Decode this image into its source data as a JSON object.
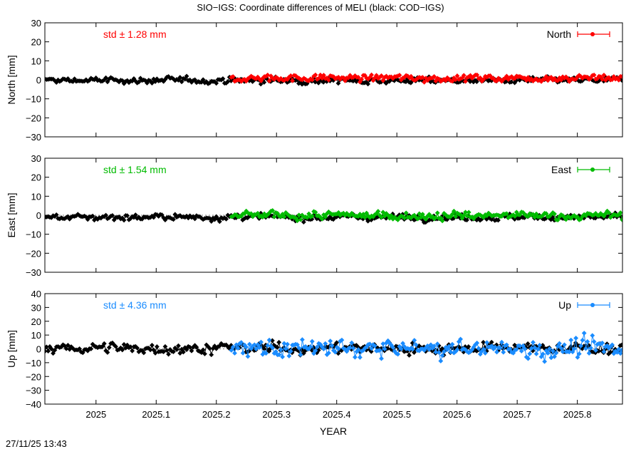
{
  "title": "SIO−IGS: Coordinate differences of MELI (black: COD−IGS)",
  "timestamp": "27/11/25 13:43",
  "chart_data": [
    {
      "type": "line",
      "ylabel": "North [mm]",
      "ylim": [
        -30,
        30
      ],
      "yticks": [
        30,
        20,
        10,
        0,
        -10,
        -20,
        -30
      ],
      "xlim": [
        2024.915,
        2025.875
      ],
      "xticks": [
        2025,
        2025.1,
        2025.2,
        2025.3,
        2025.4,
        2025.5,
        2025.6,
        2025.7,
        2025.8
      ],
      "std_label": "std ± 1.28 mm",
      "legend": "North",
      "legend_position": "top-right",
      "color": "#ff0000",
      "series": [
        {
          "name": "COD−IGS",
          "color": "#000000",
          "x_start": 2024.915,
          "x_end": 2025.875,
          "mean": -0.3,
          "amplitude": 1.2
        },
        {
          "name": "SIO−IGS",
          "color": "#ff0000",
          "x_start": 2025.225,
          "x_end": 2025.875,
          "mean": 1.0,
          "amplitude": 1.4
        }
      ]
    },
    {
      "type": "line",
      "ylabel": "East [mm]",
      "ylim": [
        -30,
        30
      ],
      "yticks": [
        30,
        20,
        10,
        0,
        -10,
        -20,
        -30
      ],
      "xlim": [
        2024.915,
        2025.875
      ],
      "xticks": [
        2025,
        2025.1,
        2025.2,
        2025.3,
        2025.4,
        2025.5,
        2025.6,
        2025.7,
        2025.8
      ],
      "std_label": "std ± 1.54 mm",
      "legend": "East",
      "legend_position": "top-right",
      "color": "#00bb00",
      "series": [
        {
          "name": "COD−IGS",
          "color": "#000000",
          "x_start": 2024.915,
          "x_end": 2025.875,
          "mean": -1.0,
          "amplitude": 1.2
        },
        {
          "name": "SIO−IGS",
          "color": "#00bb00",
          "x_start": 2025.225,
          "x_end": 2025.875,
          "mean": -0.2,
          "amplitude": 1.6
        }
      ]
    },
    {
      "type": "line",
      "ylabel": "Up [mm]",
      "ylim": [
        -40,
        40
      ],
      "yticks": [
        40,
        30,
        20,
        10,
        0,
        -10,
        -20,
        -30,
        -40
      ],
      "xlim": [
        2024.915,
        2025.875
      ],
      "xticks": [
        2025,
        2025.1,
        2025.2,
        2025.3,
        2025.4,
        2025.5,
        2025.6,
        2025.7,
        2025.8
      ],
      "std_label": "std ± 4.36 mm",
      "legend": "Up",
      "legend_position": "top-right",
      "color": "#1a8cff",
      "series": [
        {
          "name": "COD−IGS",
          "color": "#000000",
          "x_start": 2024.915,
          "x_end": 2025.875,
          "mean": 0.5,
          "amplitude": 3.0
        },
        {
          "name": "SIO−IGS",
          "color": "#1a8cff",
          "x_start": 2025.225,
          "x_end": 2025.875,
          "mean": 0.0,
          "amplitude": 5.0
        }
      ]
    }
  ],
  "xlabel": "YEAR"
}
